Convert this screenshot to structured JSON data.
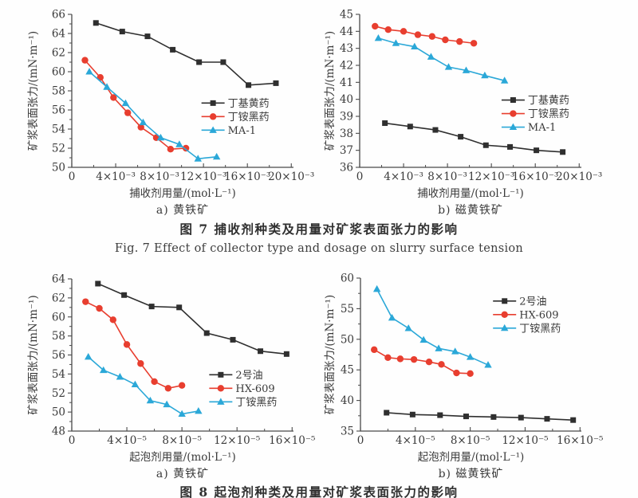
{
  "figure7": {
    "caption_zh": "图 7  捕收剂种类及用量对矿浆表面张力的影响",
    "caption_en": "Fig. 7  Effect of collector type and dosage on slurry surface tension"
  },
  "figure8": {
    "caption_zh": "图 8  起泡剂种类及用量对矿浆表面张力的影响"
  },
  "colors": {
    "black_series": "#2f2f2f",
    "red_series": "#e83e2f",
    "blue_series": "#2ba8d8",
    "axis": "#4a4a4a",
    "text": "#3a3a3a"
  },
  "chart_data": [
    {
      "id": "pyrite-collector",
      "type": "line",
      "title": "",
      "sublabel": "a) 黄铁矿",
      "xlabel": "捕收剂用量/(mol·L⁻¹)",
      "ylabel": "矿浆表面张力/(mN·m⁻¹)",
      "xlim": [
        0,
        20.2
      ],
      "ylim": [
        50,
        66
      ],
      "xticks": [
        0,
        4,
        8,
        12,
        16,
        20
      ],
      "xtick_labels": [
        "0",
        "4×10⁻³",
        "8×10⁻³",
        "12×10⁻³",
        "16×10⁻³",
        "20×10⁻³"
      ],
      "x_minor_step": 2,
      "yticks": [
        50,
        52,
        54,
        56,
        58,
        60,
        62,
        64,
        66
      ],
      "y_minor": true,
      "grid": false,
      "legend_pos": {
        "x": 0.585,
        "y": 0.58
      },
      "series": [
        {
          "name": "丁基黄药",
          "marker": "square",
          "color": "#2f2f2f",
          "x": [
            2.2,
            4.6,
            6.9,
            9.2,
            11.6,
            13.8,
            16.1,
            18.6
          ],
          "y": [
            65.1,
            64.2,
            63.7,
            62.3,
            61.0,
            61.0,
            58.6,
            58.8
          ]
        },
        {
          "name": "丁铵黑药",
          "marker": "circle",
          "color": "#e83e2f",
          "x": [
            1.2,
            2.6,
            3.8,
            5.1,
            6.3,
            7.7,
            9.0,
            10.4
          ],
          "y": [
            61.2,
            59.4,
            57.3,
            55.7,
            54.2,
            53.1,
            51.9,
            52.0
          ]
        },
        {
          "name": "MA-1",
          "marker": "triangle",
          "color": "#2ba8d8",
          "x": [
            1.6,
            3.2,
            4.9,
            6.5,
            8.1,
            9.8,
            11.5,
            13.2
          ],
          "y": [
            60.0,
            58.4,
            56.7,
            54.7,
            53.1,
            52.4,
            50.9,
            51.1
          ]
        }
      ]
    },
    {
      "id": "pyrrhotite-collector",
      "type": "line",
      "title": "",
      "sublabel": "b) 磁黄铁矿",
      "xlabel": "捕收剂用量/(mol·L⁻¹)",
      "ylabel": "矿浆表面张力/(mN·m⁻¹)",
      "xlim": [
        0,
        20.2
      ],
      "ylim": [
        36,
        45
      ],
      "xticks": [
        0,
        4,
        8,
        12,
        16,
        20
      ],
      "xtick_labels": [
        "0",
        "4×10⁻³",
        "8×10⁻³",
        "12×10⁻³",
        "16×10⁻³",
        "20×10⁻³"
      ],
      "x_minor_step": 2,
      "yticks": [
        36,
        37,
        38,
        39,
        40,
        41,
        42,
        43,
        44,
        45
      ],
      "y_minor": false,
      "grid": false,
      "legend_pos": {
        "x": 0.64,
        "y": 0.56
      },
      "series": [
        {
          "name": "丁基黄药",
          "marker": "square",
          "color": "#2f2f2f",
          "x": [
            2.3,
            4.6,
            6.9,
            9.2,
            11.5,
            13.7,
            16.1,
            18.5
          ],
          "y": [
            38.6,
            38.4,
            38.2,
            37.8,
            37.3,
            37.2,
            37.0,
            36.9
          ]
        },
        {
          "name": "丁铵黑药",
          "marker": "circle",
          "color": "#e83e2f",
          "x": [
            1.4,
            2.6,
            4.0,
            5.3,
            6.6,
            7.8,
            9.1,
            10.4
          ],
          "y": [
            44.3,
            44.1,
            44.0,
            43.8,
            43.7,
            43.5,
            43.4,
            43.3
          ]
        },
        {
          "name": "MA-1",
          "marker": "triangle",
          "color": "#2ba8d8",
          "x": [
            1.7,
            3.3,
            5.0,
            6.5,
            8.1,
            9.7,
            11.4,
            13.2
          ],
          "y": [
            43.6,
            43.3,
            43.1,
            42.5,
            41.9,
            41.7,
            41.4,
            41.1
          ]
        }
      ]
    },
    {
      "id": "pyrite-frother",
      "type": "line",
      "title": "",
      "sublabel": "a) 黄铁矿",
      "xlabel": "起泡剂用量/(mol·L⁻¹)",
      "ylabel": "矿浆表面张力/(mN·m⁻¹)",
      "xlim": [
        0,
        16.1
      ],
      "ylim": [
        48,
        64
      ],
      "xticks": [
        0,
        4,
        8,
        12,
        16
      ],
      "xtick_labels": [
        "0",
        "4×10⁻⁵",
        "8×10⁻⁵",
        "12×10⁻⁵",
        "16×10⁻⁵"
      ],
      "x_minor_step": 2,
      "yticks": [
        48,
        50,
        52,
        54,
        56,
        58,
        60,
        62,
        64
      ],
      "y_minor": true,
      "grid": false,
      "legend_pos": {
        "x": 0.62,
        "y": 0.63
      },
      "series": [
        {
          "name": "2号油",
          "marker": "square",
          "color": "#2f2f2f",
          "x": [
            1.9,
            3.8,
            5.8,
            7.8,
            9.8,
            11.7,
            13.7,
            15.6
          ],
          "y": [
            63.5,
            62.3,
            61.1,
            61.0,
            58.3,
            57.6,
            56.4,
            56.1
          ]
        },
        {
          "name": "HX-609",
          "marker": "circle",
          "color": "#e83e2f",
          "x": [
            1.0,
            2.0,
            3.0,
            4.0,
            5.0,
            6.0,
            7.0,
            8.0
          ],
          "y": [
            61.6,
            60.9,
            59.7,
            57.1,
            55.1,
            53.2,
            52.5,
            52.8
          ]
        },
        {
          "name": "丁铵黑药",
          "marker": "triangle",
          "color": "#2ba8d8",
          "x": [
            1.2,
            2.3,
            3.5,
            4.6,
            5.7,
            6.9,
            8.0,
            9.2
          ],
          "y": [
            55.8,
            54.4,
            53.7,
            52.9,
            51.2,
            50.8,
            49.8,
            50.1
          ]
        }
      ]
    },
    {
      "id": "pyrrhotite-frother",
      "type": "line",
      "title": "",
      "sublabel": "b) 磁黄铁矿",
      "xlabel": "起泡剂用量/(mol·L⁻¹)",
      "ylabel": "矿浆表面张力/(mN·m⁻¹)",
      "xlim": [
        0,
        16.1
      ],
      "ylim": [
        35,
        60
      ],
      "xticks": [
        0,
        4,
        8,
        12,
        16
      ],
      "xtick_labels": [
        "0",
        "4×10⁻⁵",
        "8×10⁻⁵",
        "12×10⁻⁵",
        "16×10⁻⁵"
      ],
      "x_minor_step": 2,
      "yticks": [
        35,
        40,
        45,
        50,
        55,
        60
      ],
      "y_minor": true,
      "grid": false,
      "legend_pos": {
        "x": 0.6,
        "y": 0.15
      },
      "series": [
        {
          "name": "2号油",
          "marker": "square",
          "color": "#2f2f2f",
          "x": [
            1.9,
            3.8,
            5.8,
            7.7,
            9.7,
            11.7,
            13.6,
            15.5
          ],
          "y": [
            38.0,
            37.7,
            37.6,
            37.4,
            37.3,
            37.2,
            37.0,
            36.8
          ]
        },
        {
          "name": "HX-609",
          "marker": "circle",
          "color": "#e83e2f",
          "x": [
            1.0,
            2.0,
            2.9,
            3.9,
            5.0,
            5.9,
            7.0,
            8.0
          ],
          "y": [
            48.3,
            47.0,
            46.8,
            46.7,
            46.3,
            45.9,
            44.5,
            44.4
          ]
        },
        {
          "name": "丁铵黑药",
          "marker": "triangle",
          "color": "#2ba8d8",
          "x": [
            1.2,
            2.3,
            3.5,
            4.6,
            5.7,
            6.9,
            8.0,
            9.3
          ],
          "y": [
            58.2,
            53.5,
            51.8,
            49.9,
            48.5,
            48.0,
            47.1,
            45.8
          ]
        }
      ]
    }
  ]
}
